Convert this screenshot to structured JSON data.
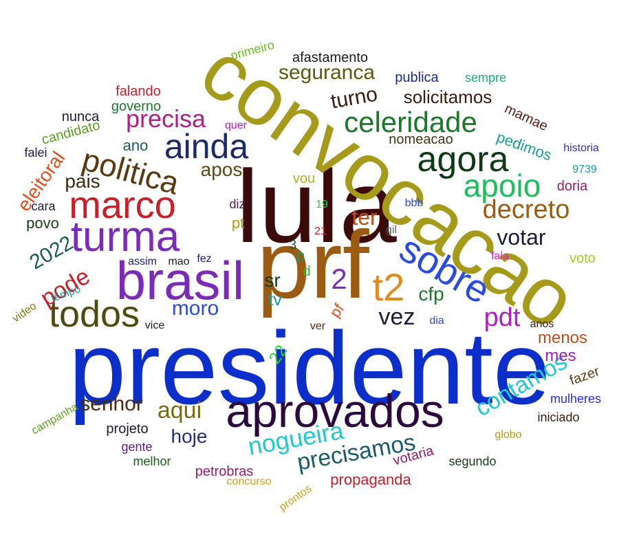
{
  "words": [
    {
      "text": "presidente",
      "color": "#0c2ec9"
    },
    {
      "text": "lula",
      "color": "#3b0a0a"
    },
    {
      "text": "convocacao",
      "color": "#a69a1b"
    },
    {
      "text": "prf",
      "color": "#9b5c12"
    },
    {
      "text": "aprovados",
      "color": "#2b0a3d"
    },
    {
      "text": "brasil",
      "color": "#7c2bb8"
    },
    {
      "text": "turma",
      "color": "#7c2bb8"
    },
    {
      "text": "marco",
      "color": "#c81f2a"
    },
    {
      "text": "todos",
      "color": "#4e4a10"
    },
    {
      "text": "sobre",
      "color": "#2b4be0"
    },
    {
      "text": "t2",
      "color": "#e08a20"
    },
    {
      "text": "ainda",
      "color": "#1a2a6a"
    },
    {
      "text": "agora",
      "color": "#0e3a16"
    },
    {
      "text": "apoio",
      "color": "#1bc05a"
    },
    {
      "text": "celeridade",
      "color": "#1a7a2a"
    },
    {
      "text": "politica",
      "color": "#5a3a10"
    },
    {
      "text": "contamos",
      "color": "#20c8d0"
    },
    {
      "text": "nogueira",
      "color": "#20c8d0"
    },
    {
      "text": "precisamos",
      "color": "#1a5a6a"
    },
    {
      "text": "decreto",
      "color": "#9b5c12"
    },
    {
      "text": "pdt",
      "color": "#b020c0"
    },
    {
      "text": "vez",
      "color": "#1a1a3a"
    },
    {
      "text": "votar",
      "color": "#1a1a3a"
    },
    {
      "text": "precisa",
      "color": "#b0208a"
    },
    {
      "text": "seguranca",
      "color": "#5a5a10"
    },
    {
      "text": "turno",
      "color": "#3a1a10"
    },
    {
      "text": "solicitamos",
      "color": "#3a1a10"
    },
    {
      "text": "eleitoral",
      "color": "#e05020"
    },
    {
      "text": "2022",
      "color": "#1a5a5a"
    },
    {
      "text": "pode",
      "color": "#c81f2a"
    },
    {
      "text": "ter",
      "color": "#c0501a"
    },
    {
      "text": "moro",
      "color": "#2b4be0"
    },
    {
      "text": "aqui",
      "color": "#7a6a10"
    },
    {
      "text": "senhor",
      "color": "#4a2a10"
    },
    {
      "text": "hoje",
      "color": "#2a2a7a"
    },
    {
      "text": "pais",
      "color": "#3a2a10"
    },
    {
      "text": "apos",
      "color": "#5a4a10"
    },
    {
      "text": "sr",
      "color": "#0e3a16"
    },
    {
      "text": "2",
      "color": "#7c2bb8"
    },
    {
      "text": "cfp",
      "color": "#1a7a2a"
    },
    {
      "text": "menos",
      "color": "#c0501a"
    },
    {
      "text": "mes",
      "color": "#9a20c0"
    },
    {
      "text": "pedimos",
      "color": "#1a9a9a"
    },
    {
      "text": "afastamento",
      "color": "#1a1a1a"
    },
    {
      "text": "primeiro",
      "color": "#6ac020"
    },
    {
      "text": "publica",
      "color": "#1a2a8a"
    },
    {
      "text": "sempre",
      "color": "#1ab07a"
    },
    {
      "text": "falando",
      "color": "#c81f2a"
    },
    {
      "text": "governo",
      "color": "#1a7a2a"
    },
    {
      "text": "nunca",
      "color": "#1a1a3a"
    },
    {
      "text": "candidato",
      "color": "#5aa020"
    },
    {
      "text": "quer",
      "color": "#b020c0"
    },
    {
      "text": "ano",
      "color": "#1a5a5a"
    },
    {
      "text": "nomeacao",
      "color": "#3a3a10"
    },
    {
      "text": "mamae",
      "color": "#5a1a10"
    },
    {
      "text": "historia",
      "color": "#3a2ab0"
    },
    {
      "text": "9739",
      "color": "#1a9a9a"
    },
    {
      "text": "doria",
      "color": "#9a1a6a"
    },
    {
      "text": "falei",
      "color": "#1a1a4a"
    },
    {
      "text": "vou",
      "color": "#b0b020"
    },
    {
      "text": "cara",
      "color": "#1a1a3a"
    },
    {
      "text": "povo",
      "color": "#1a3a1a"
    },
    {
      "text": "diz",
      "color": "#5a1a3a"
    },
    {
      "text": "pt",
      "color": "#b09a20"
    },
    {
      "text": "19",
      "color": "#20e020"
    },
    {
      "text": "bbb",
      "color": "#2a4ad0"
    },
    {
      "text": "gil",
      "color": "#5a5a5a"
    },
    {
      "text": "21",
      "color": "#c81f2a"
    },
    {
      "text": "3",
      "color": "#1a4a3a"
    },
    {
      "text": "p",
      "color": "#1a9a6a"
    },
    {
      "text": "d",
      "color": "#20c040"
    },
    {
      "text": "assim",
      "color": "#1a1a6a"
    },
    {
      "text": "mao",
      "color": "#1a1a1a"
    },
    {
      "text": "fez",
      "color": "#1a1a6a"
    },
    {
      "text": "fala",
      "color": "#e020c0"
    },
    {
      "text": "voto",
      "color": "#a0d020"
    },
    {
      "text": "tempo",
      "color": "#1a9a9a"
    },
    {
      "text": "video",
      "color": "#7a7a10"
    },
    {
      "text": "tv",
      "color": "#1a9a9a"
    },
    {
      "text": "pf",
      "color": "#e05020"
    },
    {
      "text": "vice",
      "color": "#1a1a1a"
    },
    {
      "text": "ver",
      "color": "#5a1a10"
    },
    {
      "text": "dia",
      "color": "#2a4ad0"
    },
    {
      "text": "anos",
      "color": "#3a1a10"
    },
    {
      "text": "22",
      "color": "#20e020"
    },
    {
      "text": "fazer",
      "color": "#5a3a10"
    },
    {
      "text": "mulheres",
      "color": "#2a2ae0"
    },
    {
      "text": "iniciado",
      "color": "#3a1a10"
    },
    {
      "text": "campanha",
      "color": "#5aa020"
    },
    {
      "text": "projeto",
      "color": "#1a1a2a"
    },
    {
      "text": "gente",
      "color": "#5a1a8a"
    },
    {
      "text": "melhor",
      "color": "#1a5a1a"
    },
    {
      "text": "petrobras",
      "color": "#9a1a6a"
    },
    {
      "text": "globo",
      "color": "#b09a20"
    },
    {
      "text": "votaria",
      "color": "#9a1a6a"
    },
    {
      "text": "segundo",
      "color": "#1a3a1a"
    },
    {
      "text": "concurso",
      "color": "#d0a020"
    },
    {
      "text": "pronto s",
      "color": "#d0a020"
    },
    {
      "text": "propaganda",
      "color": "#c81f2a"
    }
  ]
}
